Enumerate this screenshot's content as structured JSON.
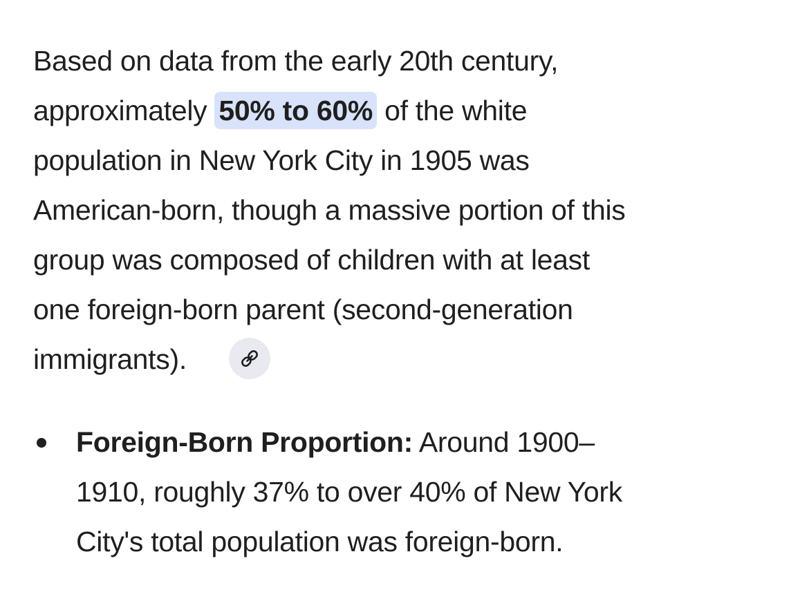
{
  "paragraph": {
    "lines": [
      [
        "Based on data from the early 20th century,"
      ],
      [
        "approximately ",
        "50% to 60%",
        " of the white"
      ],
      [
        "population in New York City in 1905 was"
      ],
      [
        "American-born, though a massive portion of this"
      ],
      [
        "group was composed of children with at least"
      ],
      [
        "one foreign-born parent (second-generation"
      ],
      [
        "immigrants)."
      ]
    ]
  },
  "bullet": {
    "lines": [
      [
        "Foreign-Born Proportion:",
        " Around 1900–"
      ],
      [
        "1910, roughly 37% to over 40% of New York"
      ],
      [
        "City's total population was foreign-born."
      ]
    ]
  }
}
